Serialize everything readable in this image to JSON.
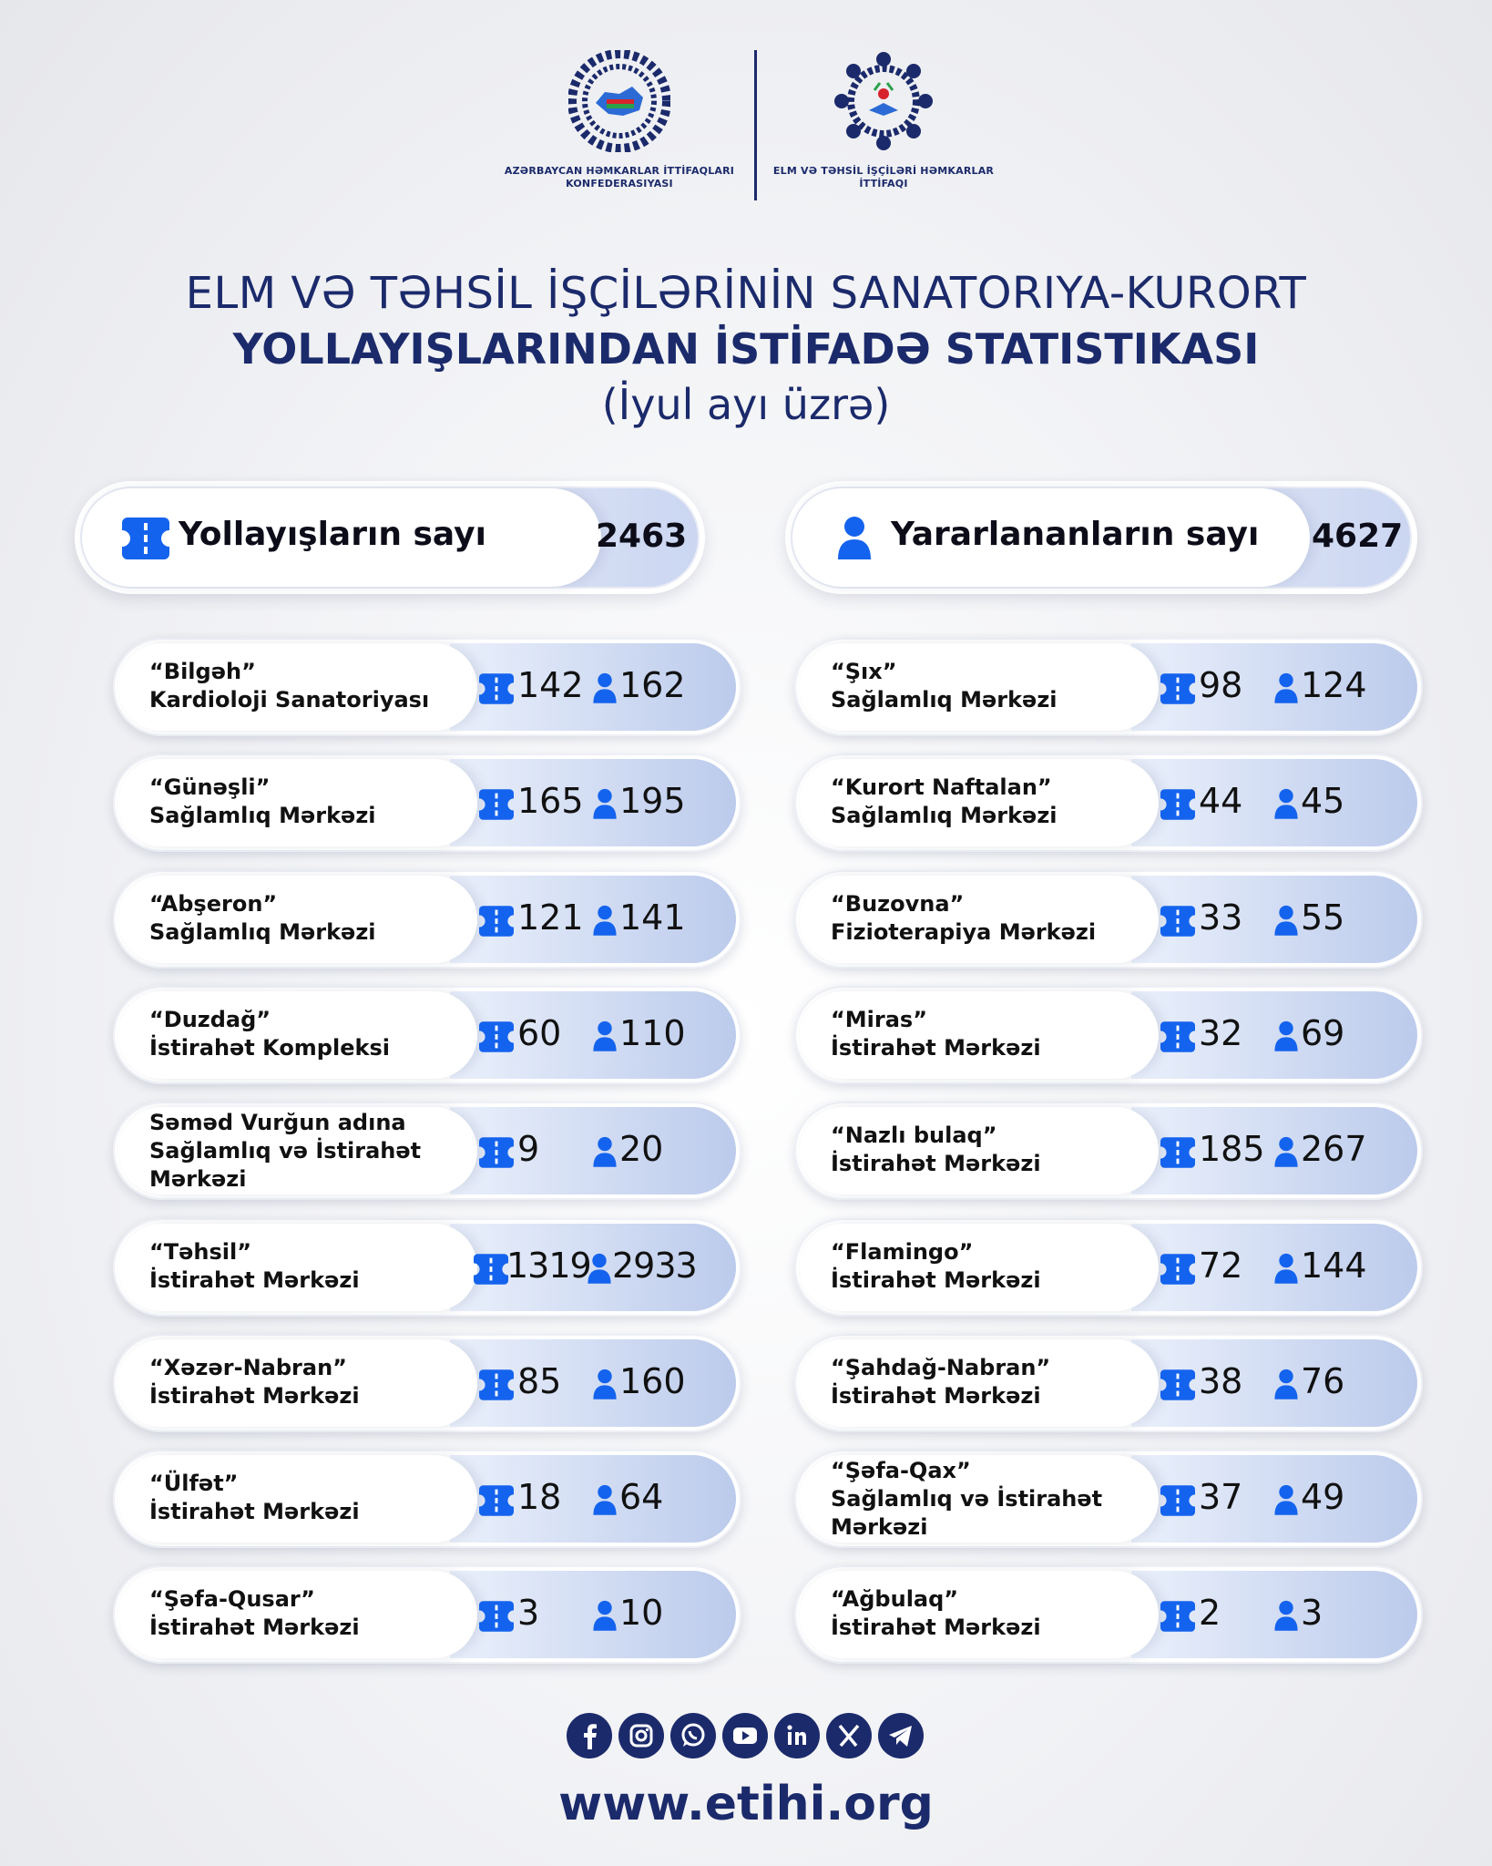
{
  "logos": {
    "left_caption_1": "AZƏRBAYCAN HƏMKARLAR İTTİFAQLARI",
    "left_caption_2": "KONFEDERASIYASI",
    "right_caption_1": "ELM VƏ TƏHSİL İŞÇİLƏRİ HƏMKARLAR",
    "right_caption_2": "İTTİFAQI"
  },
  "title": {
    "line1": "ELM VƏ TƏHSİL İŞÇİLƏRİNİN SANATORIYA-KURORT",
    "line2": "YOLLAYIŞLARINDAN İSTİFADƏ STATISTIKASI",
    "line3": "(İyul ayı üzrə)"
  },
  "summary": {
    "vouchers": {
      "label": "Yollayışların sayı",
      "value": "2463",
      "icon": "ticket-icon"
    },
    "beneficiaries": {
      "label": "Yararlananların sayı",
      "value": "4627",
      "icon": "person-icon"
    }
  },
  "left": [
    {
      "name1": "“Bilgəh”",
      "name2": "Kardioloji Sanatoriyası",
      "name3": "",
      "vouchers": "142",
      "people": "162"
    },
    {
      "name1": "“Günəşli”",
      "name2": "Sağlamlıq Mərkəzi",
      "name3": "",
      "vouchers": "165",
      "people": "195"
    },
    {
      "name1": "“Abşeron”",
      "name2": "Sağlamlıq Mərkəzi",
      "name3": "",
      "vouchers": "121",
      "people": "141"
    },
    {
      "name1": "“Duzdağ”",
      "name2": "İstirahət Kompleksi",
      "name3": "",
      "vouchers": "60",
      "people": "110"
    },
    {
      "name1": "Səməd Vurğun adına",
      "name2": "Sağlamlıq və İstirahət",
      "name3": "Mərkəzi",
      "vouchers": "9",
      "people": "20"
    },
    {
      "name1": "“Təhsil”",
      "name2": "İstirahət Mərkəzi",
      "name3": "",
      "vouchers": "1319",
      "people": "2933"
    },
    {
      "name1": "“Xəzər-Nabran”",
      "name2": "İstirahət Mərkəzi",
      "name3": "",
      "vouchers": "85",
      "people": "160"
    },
    {
      "name1": "“Ülfət”",
      "name2": "İstirahət Mərkəzi",
      "name3": "",
      "vouchers": "18",
      "people": "64"
    },
    {
      "name1": "“Şəfa-Qusar”",
      "name2": "İstirahət Mərkəzi",
      "name3": "",
      "vouchers": "3",
      "people": "10"
    }
  ],
  "right": [
    {
      "name1": "“Şıx”",
      "name2": "Sağlamlıq Mərkəzi",
      "name3": "",
      "vouchers": "98",
      "people": "124"
    },
    {
      "name1": "“Kurort Naftalan”",
      "name2": "Sağlamlıq Mərkəzi",
      "name3": "",
      "vouchers": "44",
      "people": "45"
    },
    {
      "name1": "“Buzovna”",
      "name2": "Fizioterapiya Mərkəzi",
      "name3": "",
      "vouchers": "33",
      "people": "55"
    },
    {
      "name1": "“Miras”",
      "name2": "İstirahət Mərkəzi",
      "name3": "",
      "vouchers": "32",
      "people": "69"
    },
    {
      "name1": "“Nazlı bulaq”",
      "name2": "İstirahət Mərkəzi",
      "name3": "",
      "vouchers": "185",
      "people": "267"
    },
    {
      "name1": "“Flamingo”",
      "name2": "İstirahət Mərkəzi",
      "name3": "",
      "vouchers": "72",
      "people": "144"
    },
    {
      "name1": "“Şahdağ-Nabran”",
      "name2": "İstirahət Mərkəzi",
      "name3": "",
      "vouchers": "38",
      "people": "76"
    },
    {
      "name1": "“Şəfa-Qax”",
      "name2": "Sağlamlıq və İstirahət",
      "name3": "Mərkəzi",
      "vouchers": "37",
      "people": "49"
    },
    {
      "name1": "“Ağbulaq”",
      "name2": "İstirahət Mərkəzi",
      "name3": "",
      "vouchers": "2",
      "people": "3"
    }
  ],
  "social": [
    "facebook-icon",
    "instagram-icon",
    "whatsapp-icon",
    "youtube-icon",
    "linkedin-icon",
    "x-icon",
    "telegram-icon"
  ],
  "website": "www.etihi.org",
  "colors": {
    "navy": "#1b2a6b",
    "accent_blue": "#1463ee",
    "stats_gradient_end": "#bccbec"
  }
}
